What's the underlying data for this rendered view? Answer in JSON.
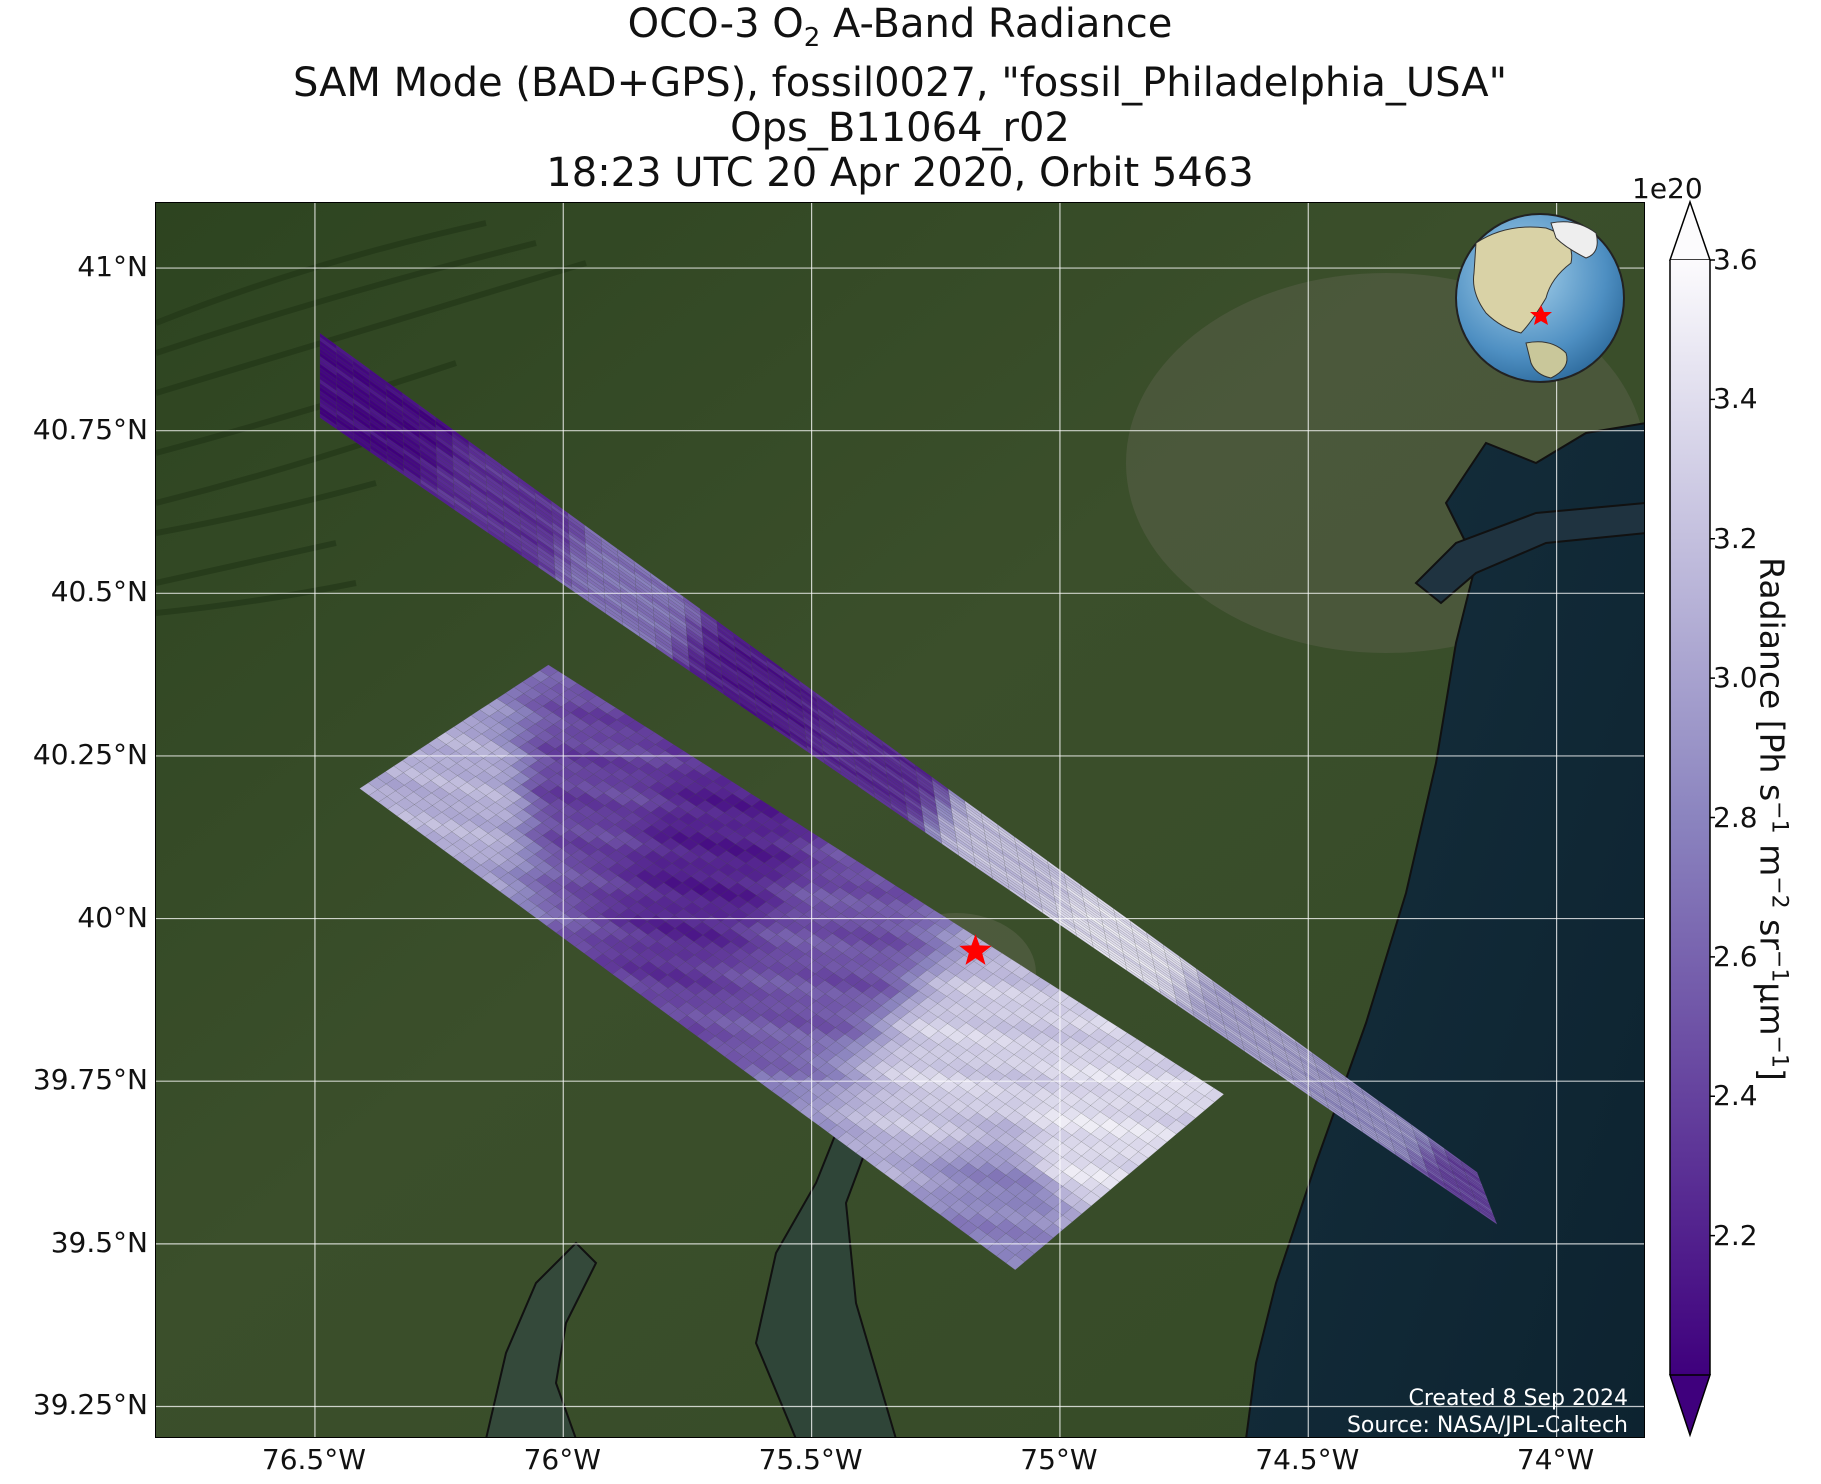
{
  "title": {
    "line1_prefix": "OCO-3 O",
    "line1_sub": "2",
    "line1_suffix": " A-Band Radiance",
    "line2": "SAM Mode (BAD+GPS), fossil0027, \"fossil_Philadelphia_USA\"",
    "line3": "Ops_B11064_r02",
    "line4": "18:23 UTC 20 Apr 2020, Orbit 5463"
  },
  "map": {
    "lon_range": [
      -76.82,
      -73.82
    ],
    "lat_range": [
      39.2,
      41.1
    ],
    "lon_ticks": [
      {
        "value": -76.5,
        "label": "76.5°W"
      },
      {
        "value": -76.0,
        "label": "76°W"
      },
      {
        "value": -75.5,
        "label": "75.5°W"
      },
      {
        "value": -75.0,
        "label": "75°W"
      },
      {
        "value": -74.5,
        "label": "74.5°W"
      },
      {
        "value": -74.0,
        "label": "74°W"
      }
    ],
    "lat_ticks": [
      {
        "value": 41.0,
        "label": "41°N"
      },
      {
        "value": 40.75,
        "label": "40.75°N"
      },
      {
        "value": 40.5,
        "label": "40.5°N"
      },
      {
        "value": 40.25,
        "label": "40.25°N"
      },
      {
        "value": 40.0,
        "label": "40°N"
      },
      {
        "value": 39.75,
        "label": "39.75°N"
      },
      {
        "value": 39.5,
        "label": "39.5°N"
      },
      {
        "value": 39.25,
        "label": "39.25°N"
      }
    ],
    "grid": true,
    "background": "satellite imagery",
    "target_marker": {
      "lon": -75.17,
      "lat": 39.95,
      "symbol": "star",
      "color": "#ff0000"
    },
    "inset_globe": {
      "location": "top-right",
      "marker_color": "#ff0000"
    },
    "credit_line1": "Created 8 Sep 2024",
    "credit_line2": "Source: NASA/JPL-Caltech"
  },
  "colorbar": {
    "colormap": "Purples_r",
    "range": [
      2.0,
      3.6
    ],
    "extend": "both",
    "exponent_label": "1e20",
    "ticks": [
      "2.2",
      "2.4",
      "2.6",
      "2.8",
      "3.0",
      "3.2",
      "3.4",
      "3.6"
    ],
    "label_main": "Radiance [Ph s",
    "label_sup1": "−1",
    "label_m": " m",
    "label_sup2": "−2",
    "label_sr": " sr",
    "label_sup3": "−1",
    "label_um": "μm",
    "label_sup4": "−1",
    "label_end": "]",
    "color_low": "#3f007d",
    "color_mid": "#8b84bf",
    "color_high": "#fcfbfd"
  },
  "chart_data": {
    "type": "heatmap",
    "xlabel": "",
    "ylabel": "",
    "colorbar_label": "Radiance [Ph s−1 m−2 sr−1μm−1]",
    "value_scale": "1e20",
    "swaths": [
      {
        "corners": [
          [
            -76.49,
            40.9
          ],
          [
            -76.49,
            40.77
          ],
          [
            -74.12,
            39.53
          ],
          [
            -74.16,
            39.61
          ]
        ],
        "samples": [
          {
            "lon": -76.35,
            "lat": 40.8,
            "value": 2.05
          },
          {
            "lon": -76.1,
            "lat": 40.65,
            "value": 2.3
          },
          {
            "lon": -75.85,
            "lat": 40.52,
            "value": 2.7
          },
          {
            "lon": -75.6,
            "lat": 40.38,
            "value": 2.15
          },
          {
            "lon": -75.35,
            "lat": 40.25,
            "value": 2.25
          },
          {
            "lon": -75.1,
            "lat": 40.12,
            "value": 3.2
          },
          {
            "lon": -74.85,
            "lat": 39.98,
            "value": 3.4
          },
          {
            "lon": -74.6,
            "lat": 39.85,
            "value": 3.0
          },
          {
            "lon": -74.35,
            "lat": 39.72,
            "value": 2.9
          },
          {
            "lon": -74.15,
            "lat": 39.58,
            "value": 2.4
          }
        ]
      },
      {
        "corners": [
          [
            -76.03,
            40.39
          ],
          [
            -76.41,
            40.2
          ],
          [
            -75.09,
            39.46
          ],
          [
            -74.67,
            39.73
          ]
        ],
        "samples": [
          {
            "lon": -76.2,
            "lat": 40.18,
            "value": 3.1
          },
          {
            "lon": -75.95,
            "lat": 40.2,
            "value": 2.4
          },
          {
            "lon": -75.7,
            "lat": 40.1,
            "value": 2.2
          },
          {
            "lon": -75.45,
            "lat": 39.95,
            "value": 2.5
          },
          {
            "lon": -75.2,
            "lat": 39.78,
            "value": 3.3
          },
          {
            "lon": -74.95,
            "lat": 39.65,
            "value": 3.4
          },
          {
            "lon": -75.1,
            "lat": 39.55,
            "value": 2.8
          }
        ]
      }
    ]
  }
}
